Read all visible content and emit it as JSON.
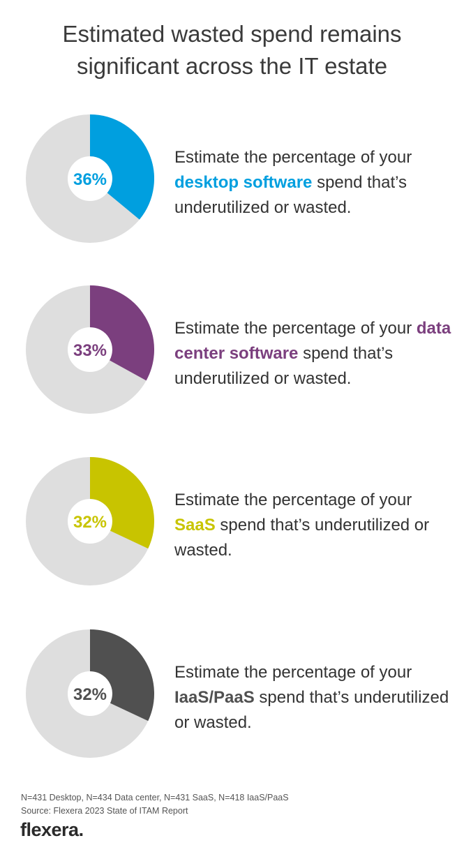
{
  "title": {
    "line1": "Estimated wasted spend remains",
    "line2": "significant across the IT estate"
  },
  "chart_data": [
    {
      "type": "pie",
      "variant": "donut",
      "label": "36%",
      "value": 36,
      "color": "#009fdf",
      "rest_color": "#dedede",
      "text": {
        "before": "Estimate the percentage of your",
        "highlight": "desktop software",
        "after": "spend that’s underutilized or wasted."
      }
    },
    {
      "type": "pie",
      "variant": "donut",
      "label": "33%",
      "value": 33,
      "color": "#7b3f7e",
      "rest_color": "#dedede",
      "text": {
        "before": "Estimate the percentage of your",
        "highlight": "data center software",
        "after": "spend that’s underutilized or wasted."
      }
    },
    {
      "type": "pie",
      "variant": "donut",
      "label": "32%",
      "value": 32,
      "color": "#c8c400",
      "rest_color": "#dedede",
      "text": {
        "before": "Estimate the percentage of your",
        "highlight": "SaaS",
        "after": "spend that’s underutilized or wasted."
      }
    },
    {
      "type": "pie",
      "variant": "donut",
      "label": "32%",
      "value": 32,
      "color": "#505050",
      "rest_color": "#dedede",
      "text": {
        "before": "Estimate the percentage of your",
        "highlight": "IaaS/PaaS",
        "after": "spend that’s underutilized or wasted."
      }
    }
  ],
  "footnote": {
    "line1": "N=431 Desktop, N=434 Data center, N=431 SaaS, N=418 IaaS/PaaS",
    "line2": "Source: Flexera 2023 State of ITAM Report"
  },
  "logo": {
    "text": "flexera",
    "dot": "."
  }
}
